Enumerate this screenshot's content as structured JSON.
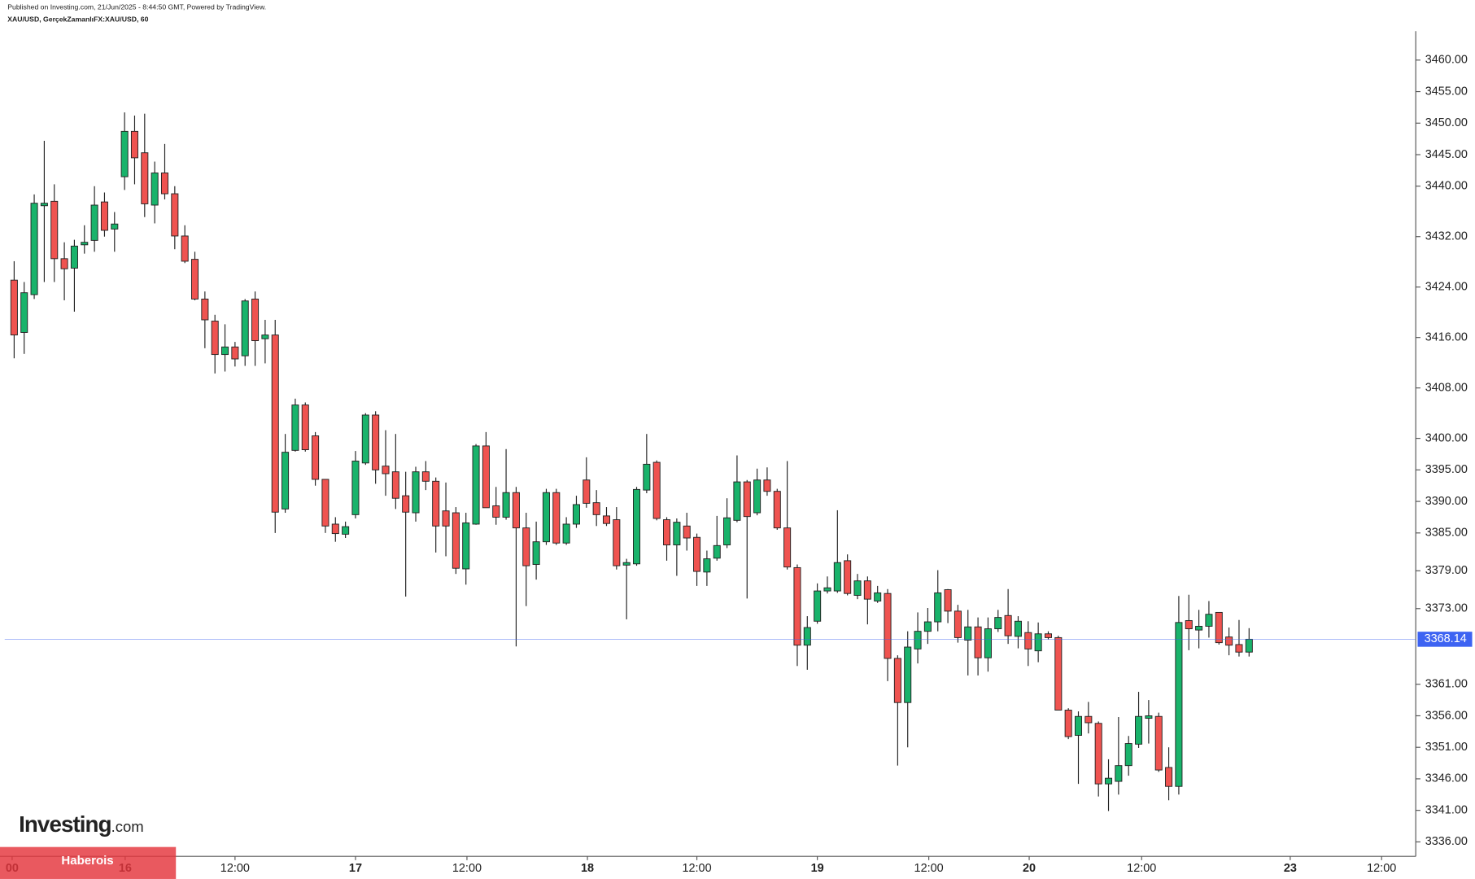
{
  "chart_data": {
    "type": "candlestick",
    "subtitle": "Published on Investing.com, 21/Jun/2025 - 8:44:50 GMT, Powered by TradingView.",
    "title": "XAU/USD, GerçekZamanlıFX:XAU/USD, 60",
    "up_color": "#19b36b",
    "down_color": "#ef5350",
    "x": [
      0,
      1,
      2,
      3,
      4,
      5,
      6,
      7,
      8,
      9,
      10,
      11,
      12,
      13,
      14,
      15,
      16,
      17,
      18,
      19,
      20,
      21,
      22,
      23,
      24,
      25,
      26,
      27,
      28,
      29,
      30,
      31,
      32,
      33,
      34,
      35,
      36,
      37,
      38,
      39,
      40,
      41,
      42,
      43,
      44,
      45,
      46,
      47,
      48,
      49,
      50,
      51,
      52,
      53,
      54,
      55,
      56,
      57,
      58,
      59,
      60,
      61,
      62,
      63,
      64,
      65,
      66,
      67,
      68,
      69,
      70,
      71,
      72,
      73,
      74,
      75,
      76,
      77,
      78,
      79,
      80,
      81,
      82,
      83,
      84,
      85,
      86,
      87,
      88,
      89,
      90,
      91,
      92,
      93,
      94,
      95,
      96,
      97,
      98,
      99,
      100,
      101,
      102,
      103,
      104,
      105,
      106,
      107,
      108,
      109,
      110,
      111,
      112,
      113,
      114,
      115,
      116,
      117,
      118,
      119,
      120,
      121,
      122,
      123
    ],
    "open": [
      3425.1,
      3416.8,
      3422.8,
      3436.9,
      3437.6,
      3428.5,
      3427.0,
      3430.7,
      3431.4,
      3437.5,
      3433.2,
      3441.5,
      3448.7,
      3445.3,
      3437.0,
      3442.1,
      3438.8,
      3432.1,
      3428.4,
      3422.1,
      3418.6,
      3413.3,
      3414.5,
      3413.1,
      3422.1,
      3415.8,
      3416.4,
      3388.8,
      3398.1,
      3405.3,
      3400.4,
      3393.5,
      3386.4,
      3384.8,
      3387.9,
      3396.1,
      3403.7,
      3395.6,
      3394.7,
      3390.9,
      3388.2,
      3394.7,
      3393.2,
      3388.5,
      3388.2,
      3379.3,
      3386.4,
      3398.8,
      3389.3,
      3387.5,
      3391.4,
      3385.8,
      3380.0,
      3383.6,
      3391.4,
      3383.4,
      3386.4,
      3393.4,
      3389.8,
      3387.7,
      3387.1,
      3379.9,
      3380.1,
      3391.8,
      3396.2,
      3387.1,
      3383.1,
      3386.1,
      3384.3,
      3378.8,
      3381.0,
      3383.1,
      3387.0,
      3393.1,
      3388.2,
      3393.4,
      3391.6,
      3385.8,
      3379.5,
      3367.2,
      3371.0,
      3375.8,
      3375.8,
      3380.6,
      3375.1,
      3377.4,
      3374.2,
      3375.4,
      3365.1,
      3358.1,
      3366.6,
      3369.4,
      3370.9,
      3376.0,
      3372.6,
      3368.0,
      3370.1,
      3365.2,
      3369.8,
      3371.9,
      3368.6,
      3369.2,
      3366.3,
      3369.0,
      3368.4,
      3356.9,
      3352.9,
      3355.9,
      3354.8,
      3345.2,
      3345.6,
      3348.1,
      3351.5,
      3355.6,
      3355.9,
      3347.8,
      3344.8,
      3371.1,
      3369.6,
      3370.2,
      3372.4,
      3368.5,
      3367.3,
      3366.1
    ],
    "high": [
      3428.1,
      3424.8,
      3438.7,
      3447.2,
      3440.3,
      3431.1,
      3431.5,
      3433.8,
      3440.0,
      3439.0,
      3435.9,
      3451.7,
      3451.2,
      3451.5,
      3443.9,
      3446.7,
      3440.0,
      3433.8,
      3429.6,
      3423.3,
      3419.6,
      3418.1,
      3415.3,
      3422.1,
      3423.3,
      3418.8,
      3418.8,
      3400.7,
      3406.3,
      3405.7,
      3401.0,
      3393.5,
      3387.5,
      3386.8,
      3398.0,
      3404.0,
      3404.3,
      3401.3,
      3400.7,
      3394.7,
      3395.5,
      3396.4,
      3393.8,
      3393.0,
      3389.1,
      3388.2,
      3399.1,
      3401.0,
      3392.3,
      3398.3,
      3392.3,
      3388.2,
      3386.8,
      3392.0,
      3392.0,
      3387.5,
      3390.9,
      3397.0,
      3391.8,
      3389.1,
      3389.1,
      3380.9,
      3392.3,
      3400.7,
      3396.5,
      3387.5,
      3387.3,
      3388.2,
      3384.9,
      3382.2,
      3387.7,
      3390.5,
      3397.3,
      3393.4,
      3395.2,
      3395.4,
      3392.0,
      3396.4,
      3380.0,
      3371.8,
      3377.0,
      3378.1,
      3388.6,
      3381.6,
      3378.5,
      3378.1,
      3376.6,
      3376.1,
      3365.6,
      3369.4,
      3372.4,
      3373.1,
      3379.1,
      3376.1,
      3373.6,
      3372.8,
      3371.6,
      3371.6,
      3372.8,
      3376.1,
      3371.8,
      3371.0,
      3370.8,
      3369.4,
      3368.7,
      3357.2,
      3356.7,
      3358.2,
      3355.1,
      3349.1,
      3355.8,
      3352.8,
      3359.8,
      3358.5,
      3356.5,
      3351.0,
      3375.0,
      3375.2,
      3372.8,
      3374.2,
      3372.4,
      3370.0,
      3371.2,
      3369.9
    ],
    "low": [
      3412.7,
      3413.4,
      3422.1,
      3424.8,
      3424.8,
      3421.9,
      3420.1,
      3429.3,
      3429.6,
      3432.0,
      3429.6,
      3439.4,
      3440.3,
      3435.1,
      3434.1,
      3437.9,
      3430.0,
      3427.8,
      3421.9,
      3414.3,
      3410.3,
      3410.6,
      3411.4,
      3411.5,
      3411.5,
      3411.9,
      3385.0,
      3388.2,
      3397.9,
      3397.9,
      3392.5,
      3385.0,
      3383.6,
      3384.2,
      3387.3,
      3395.8,
      3392.8,
      3390.9,
      3388.8,
      3374.9,
      3386.8,
      3391.8,
      3381.9,
      3381.3,
      3378.5,
      3376.8,
      3386.3,
      3389.0,
      3386.3,
      3387.1,
      3367.0,
      3373.4,
      3377.6,
      3383.1,
      3383.1,
      3383.1,
      3385.8,
      3389.0,
      3386.1,
      3386.1,
      3379.2,
      3371.3,
      3379.8,
      3391.3,
      3387.0,
      3380.6,
      3378.2,
      3382.2,
      3376.6,
      3376.6,
      3380.6,
      3382.6,
      3386.7,
      3374.6,
      3387.8,
      3390.9,
      3385.5,
      3379.2,
      3363.9,
      3363.3,
      3370.6,
      3375.4,
      3375.5,
      3375.1,
      3374.5,
      3370.5,
      3373.9,
      3361.5,
      3348.1,
      3351.0,
      3364.3,
      3367.4,
      3369.4,
      3370.7,
      3367.6,
      3362.4,
      3362.4,
      3363.0,
      3369.3,
      3367.4,
      3366.7,
      3363.9,
      3364.5,
      3368.1,
      3356.9,
      3352.3,
      3345.2,
      3353.2,
      3343.2,
      3340.9,
      3343.5,
      3346.5,
      3350.9,
      3351.6,
      3347.1,
      3342.6,
      3343.5,
      3366.4,
      3366.7,
      3368.4,
      3367.3,
      3365.6,
      3365.4,
      3365.4
    ],
    "close": [
      3416.4,
      3423.1,
      3437.3,
      3437.3,
      3428.5,
      3426.9,
      3430.5,
      3431.1,
      3437.0,
      3433.0,
      3434.0,
      3448.7,
      3444.5,
      3437.2,
      3442.1,
      3438.8,
      3432.1,
      3428.1,
      3422.1,
      3418.8,
      3413.3,
      3414.5,
      3412.6,
      3421.8,
      3415.5,
      3416.4,
      3388.3,
      3397.8,
      3405.3,
      3398.2,
      3393.5,
      3386.1,
      3384.9,
      3386.0,
      3396.4,
      3403.7,
      3395.0,
      3394.4,
      3390.5,
      3388.3,
      3394.7,
      3393.2,
      3386.1,
      3386.1,
      3379.4,
      3386.6,
      3398.8,
      3389.0,
      3387.5,
      3391.4,
      3385.8,
      3379.8,
      3383.6,
      3391.4,
      3383.4,
      3386.4,
      3389.5,
      3389.7,
      3387.9,
      3386.5,
      3379.8,
      3380.3,
      3391.9,
      3395.9,
      3387.3,
      3383.1,
      3386.7,
      3384.2,
      3378.9,
      3380.9,
      3383.0,
      3387.4,
      3393.1,
      3387.6,
      3393.4,
      3391.6,
      3385.8,
      3379.6,
      3367.2,
      3370.0,
      3375.8,
      3376.3,
      3380.3,
      3375.4,
      3377.4,
      3374.5,
      3375.5,
      3365.1,
      3358.1,
      3366.9,
      3369.4,
      3370.9,
      3375.5,
      3372.6,
      3368.4,
      3370.1,
      3365.2,
      3369.8,
      3371.6,
      3368.7,
      3371.0,
      3366.6,
      3369.0,
      3368.4,
      3356.9,
      3352.7,
      3355.9,
      3354.9,
      3345.2,
      3346.1,
      3348.1,
      3351.6,
      3355.9,
      3356.0,
      3347.4,
      3344.8,
      3370.8,
      3369.8,
      3370.2,
      3372.1,
      3367.6,
      3367.2,
      3366.1,
      3368.14
    ],
    "last_price": 3368.14,
    "last_price_color": "#3d63f2",
    "xlim": [
      -0.94,
      139.6
    ],
    "xticks": [
      {
        "value": -0.2,
        "label": "00"
      },
      {
        "value": 11.06,
        "label": "16"
      },
      {
        "value": 22.0,
        "label": "12:00"
      },
      {
        "value": 34.0,
        "label": "17"
      },
      {
        "value": 45.1,
        "label": "12:00"
      },
      {
        "value": 57.1,
        "label": "18"
      },
      {
        "value": 68.0,
        "label": "12:00"
      },
      {
        "value": 80.0,
        "label": "19"
      },
      {
        "value": 91.1,
        "label": "12:00"
      },
      {
        "value": 101.1,
        "label": "20"
      },
      {
        "value": 112.3,
        "label": "12:00"
      },
      {
        "value": 127.1,
        "label": "23"
      },
      {
        "value": 136.2,
        "label": "12:00"
      }
    ],
    "ylim": [
      3333.7,
      3464.6
    ],
    "yticks": [
      {
        "value": 3460,
        "label": "3460.00"
      },
      {
        "value": 3455,
        "label": "3455.00"
      },
      {
        "value": 3450,
        "label": "3450.00"
      },
      {
        "value": 3445,
        "label": "3445.00"
      },
      {
        "value": 3440,
        "label": "3440.00"
      },
      {
        "value": 3432,
        "label": "3432.00"
      },
      {
        "value": 3424,
        "label": "3424.00"
      },
      {
        "value": 3416,
        "label": "3416.00"
      },
      {
        "value": 3408,
        "label": "3408.00"
      },
      {
        "value": 3400,
        "label": "3400.00"
      },
      {
        "value": 3395,
        "label": "3395.00"
      },
      {
        "value": 3390,
        "label": "3390.00"
      },
      {
        "value": 3385,
        "label": "3385.00"
      },
      {
        "value": 3379,
        "label": "3379.00"
      },
      {
        "value": 3373,
        "label": "3373.00"
      },
      {
        "value": 3361,
        "label": "3361.00"
      },
      {
        "value": 3356,
        "label": "3356.00"
      },
      {
        "value": 3351,
        "label": "3351.00"
      },
      {
        "value": 3346,
        "label": "3346.00"
      },
      {
        "value": 3341,
        "label": "3341.00"
      },
      {
        "value": 3336,
        "label": "3336.00"
      }
    ],
    "grid": false
  },
  "logo": {
    "name": "Investing",
    "suffix": ".com"
  },
  "badge": "Haberois"
}
